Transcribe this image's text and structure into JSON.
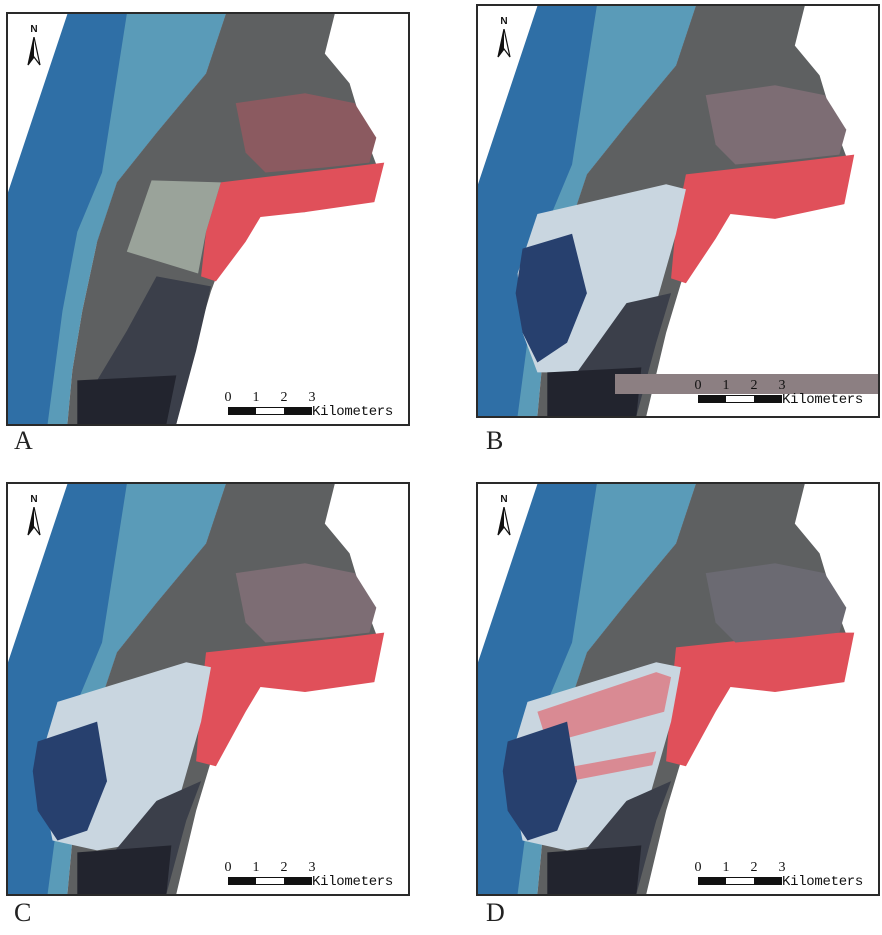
{
  "figure": {
    "colors": {
      "sea_deep": "#2f6fa6",
      "sea_shallow": "#5a9bb8",
      "tidal_flat": "#5e6061",
      "vegetation_red": "#e0505a",
      "reclaimed_white": "#c9d6e0",
      "dark_water": "#27406e",
      "frame": "#2a2a2a"
    },
    "panels": [
      {
        "letter": "A",
        "north_label": "N",
        "scale": {
          "ticks": [
            "0",
            "1",
            "2",
            "3"
          ],
          "units": "Kilometers"
        }
      },
      {
        "letter": "B",
        "north_label": "N",
        "scale": {
          "ticks": [
            "0",
            "1",
            "2",
            "3"
          ],
          "units": "Kilometers"
        }
      },
      {
        "letter": "C",
        "north_label": "N",
        "scale": {
          "ticks": [
            "0",
            "1",
            "2",
            "3"
          ],
          "units": "Kilometers"
        }
      },
      {
        "letter": "D",
        "north_label": "N",
        "scale": {
          "ticks": [
            "0",
            "1",
            "2",
            "3"
          ],
          "units": "Kilometers"
        }
      }
    ]
  }
}
